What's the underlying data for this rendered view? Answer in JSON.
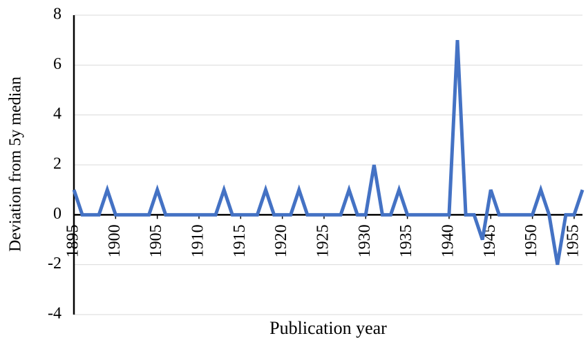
{
  "chart_data": {
    "type": "line",
    "y_label": "Deviation from 5y median",
    "x_label": "Publication year",
    "x": [
      1895,
      1896,
      1897,
      1898,
      1899,
      1900,
      1901,
      1902,
      1903,
      1904,
      1905,
      1906,
      1907,
      1908,
      1909,
      1910,
      1911,
      1912,
      1913,
      1914,
      1915,
      1916,
      1917,
      1918,
      1919,
      1920,
      1921,
      1922,
      1923,
      1924,
      1925,
      1926,
      1927,
      1928,
      1929,
      1930,
      1931,
      1932,
      1933,
      1934,
      1935,
      1936,
      1937,
      1938,
      1939,
      1940,
      1941,
      1942,
      1943,
      1944,
      1945,
      1946,
      1947,
      1948,
      1949,
      1950,
      1951,
      1952,
      1953,
      1954,
      1955,
      1956
    ],
    "values": [
      1,
      0,
      0,
      0,
      1,
      0,
      0,
      0,
      0,
      0,
      1,
      0,
      0,
      0,
      0,
      0,
      0,
      0,
      1,
      0,
      0,
      0,
      0,
      1,
      0,
      0,
      0,
      1,
      0,
      0,
      0,
      0,
      0,
      1,
      0,
      0,
      2,
      0,
      0,
      1,
      0,
      0,
      0,
      0,
      0,
      0,
      7,
      0,
      0,
      -1,
      1,
      0,
      0,
      0,
      0,
      0,
      1,
      0,
      -2,
      0,
      0,
      1
    ],
    "color": "#4472c4",
    "xlim": [
      1895,
      1956
    ],
    "xticks": [
      1895,
      1900,
      1905,
      1910,
      1915,
      1920,
      1925,
      1930,
      1935,
      1940,
      1945,
      1950,
      1955
    ],
    "ylim": [
      -4,
      8
    ],
    "yticks": [
      -4,
      -2,
      0,
      2,
      4,
      6,
      8
    ],
    "grid": true
  }
}
